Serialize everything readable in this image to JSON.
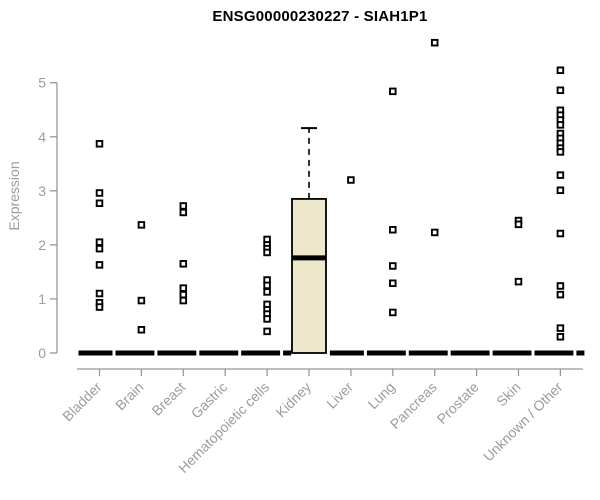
{
  "title": "ENSG00000230227 - SIAH1P1",
  "chart_data": {
    "type": "boxplot",
    "title": "ENSG00000230227 - SIAH1P1",
    "xlabel": "",
    "ylabel": "Expression",
    "ylim": [
      0,
      5
    ],
    "yticks": [
      0,
      1,
      2,
      3,
      4,
      5
    ],
    "grid": false,
    "legend": null,
    "categories": [
      "Bladder",
      "Brain",
      "Breast",
      "Gastric",
      "Hematopoietic cells",
      "Kidney",
      "Liver",
      "Lung",
      "Pancreas",
      "Prostate",
      "Skin",
      "Unknown / Other"
    ],
    "boxes": [
      {
        "category": "Bladder",
        "q1": 0,
        "median": 0,
        "q3": 0,
        "whisker_low": 0,
        "whisker_high": 0,
        "outliers": [
          3.87,
          2.96,
          2.77,
          2.05,
          1.93,
          1.63,
          1.1,
          0.93,
          0.85
        ]
      },
      {
        "category": "Brain",
        "q1": 0,
        "median": 0,
        "q3": 0,
        "whisker_low": 0,
        "whisker_high": 0,
        "outliers": [
          2.37,
          0.97,
          0.43
        ]
      },
      {
        "category": "Breast",
        "q1": 0,
        "median": 0,
        "q3": 0,
        "whisker_low": 0,
        "whisker_high": 0,
        "outliers": [
          2.72,
          2.6,
          1.65,
          1.2,
          1.08,
          0.97
        ]
      },
      {
        "category": "Gastric",
        "q1": 0,
        "median": 0,
        "q3": 0,
        "whisker_low": 0,
        "whisker_high": 0,
        "outliers": []
      },
      {
        "category": "Hematopoietic cells",
        "q1": 0,
        "median": 0,
        "q3": 0,
        "whisker_low": 0,
        "whisker_high": 0,
        "outliers": [
          2.1,
          2.0,
          1.93,
          1.86,
          1.35,
          1.25,
          1.13,
          0.9,
          0.8,
          0.72,
          0.63,
          0.4
        ]
      },
      {
        "category": "Kidney",
        "q1": 0,
        "median": 1.76,
        "q3": 2.85,
        "whisker_low": 0,
        "whisker_high": 4.16,
        "outliers": []
      },
      {
        "category": "Liver",
        "q1": 0,
        "median": 0,
        "q3": 0,
        "whisker_low": 0,
        "whisker_high": 0,
        "outliers": [
          3.2
        ]
      },
      {
        "category": "Lung",
        "q1": 0,
        "median": 0,
        "q3": 0,
        "whisker_low": 0,
        "whisker_high": 0,
        "outliers": [
          4.84,
          2.28,
          1.61,
          1.29,
          0.75
        ]
      },
      {
        "category": "Pancreas",
        "q1": 0,
        "median": 0,
        "q3": 0,
        "whisker_low": 0,
        "whisker_high": 0,
        "outliers": [
          5.74,
          2.23
        ]
      },
      {
        "category": "Prostate",
        "q1": 0,
        "median": 0,
        "q3": 0,
        "whisker_low": 0,
        "whisker_high": 0,
        "outliers": []
      },
      {
        "category": "Skin",
        "q1": 0,
        "median": 0,
        "q3": 0,
        "whisker_low": 0,
        "whisker_high": 0,
        "outliers": [
          2.45,
          2.38,
          1.32
        ]
      },
      {
        "category": "Unknown / Other",
        "q1": 0,
        "median": 0,
        "q3": 0,
        "whisker_low": 0,
        "whisker_high": 0,
        "outliers": [
          5.23,
          4.86,
          4.49,
          4.4,
          4.31,
          4.22,
          4.06,
          3.97,
          3.88,
          3.79,
          3.72,
          3.29,
          3.01,
          2.21,
          1.24,
          1.08,
          0.46,
          0.3
        ]
      }
    ],
    "colors": {
      "box_fill": "#EDE7CB",
      "box_border": "#000000",
      "median": "#000000",
      "outlier": "#000000",
      "axis": "#979797",
      "tick_label": "#9c9c9c",
      "title": "#000000",
      "background": "#ffffff"
    }
  }
}
